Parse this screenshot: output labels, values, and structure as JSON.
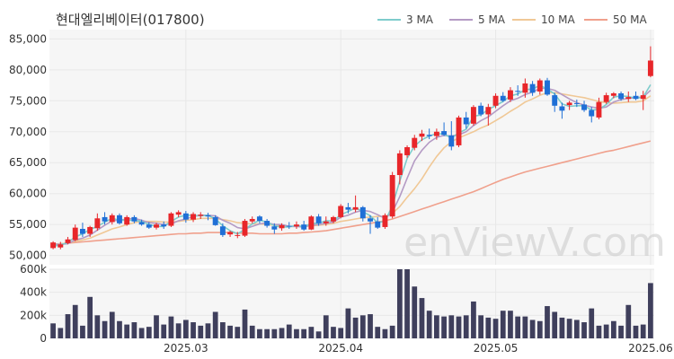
{
  "chart_data": {
    "type": "candlestick",
    "title": "현대엘리베이터(017800)",
    "watermark": "enViewV.com",
    "price_axis": {
      "ylim": [
        48500,
        86500
      ],
      "ticks": [
        50000,
        55000,
        60000,
        65000,
        70000,
        75000,
        80000,
        85000
      ],
      "tick_labels": [
        "50,000",
        "55,000",
        "60,000",
        "65,000",
        "70,000",
        "75,000",
        "80,000",
        "85,000"
      ]
    },
    "volume_axis": {
      "ylim": [
        0,
        600000
      ],
      "ticks": [
        0,
        200000,
        400000,
        600000
      ],
      "tick_labels": [
        "0",
        "200k",
        "400k",
        "600k"
      ]
    },
    "x_axis": {
      "tick_labels": [
        {
          "label": "2025.03",
          "index": 18
        },
        {
          "label": "2025.04",
          "index": 39
        },
        {
          "label": "2025.05",
          "index": 60
        },
        {
          "label": "2025.06",
          "index": 81
        }
      ],
      "count": 82
    },
    "legend": [
      {
        "name": "3 MA",
        "color": "#7ecccc"
      },
      {
        "name": "5 MA",
        "color": "#b49ac4"
      },
      {
        "name": "10 MA",
        "color": "#f0c896"
      },
      {
        "name": "50 MA",
        "color": "#f0a08c"
      }
    ],
    "colors": {
      "up": "#e8262a",
      "down": "#1f6fd6",
      "volume": "#3f3f5c",
      "grid": "#e8e8e8",
      "panel": "#f6f6f6"
    },
    "candles": [
      [
        51200,
        52300,
        51000,
        52100
      ],
      [
        51300,
        52200,
        51000,
        51800
      ],
      [
        52000,
        53000,
        51800,
        52600
      ],
      [
        52500,
        55000,
        52300,
        54500
      ],
      [
        54300,
        55300,
        53000,
        53500
      ],
      [
        53500,
        54800,
        53000,
        54600
      ],
      [
        54400,
        56800,
        54000,
        56000
      ],
      [
        56200,
        57000,
        55000,
        55500
      ],
      [
        55400,
        56800,
        55000,
        56500
      ],
      [
        56500,
        56800,
        55000,
        55200
      ],
      [
        55000,
        56500,
        54800,
        56200
      ],
      [
        56200,
        56500,
        55200,
        55500
      ],
      [
        55400,
        55800,
        54800,
        55000
      ],
      [
        55000,
        55400,
        54300,
        54500
      ],
      [
        54500,
        55300,
        54200,
        55000
      ],
      [
        55000,
        55500,
        54300,
        54700
      ],
      [
        54800,
        57000,
        54600,
        56800
      ],
      [
        56600,
        57300,
        56200,
        57000
      ],
      [
        56800,
        57200,
        55300,
        55800
      ],
      [
        55800,
        57000,
        55400,
        56700
      ],
      [
        56400,
        57000,
        55900,
        56600
      ],
      [
        56500,
        56900,
        55700,
        56300
      ],
      [
        56200,
        56500,
        54800,
        54900
      ],
      [
        54700,
        55200,
        53000,
        53300
      ],
      [
        53400,
        54000,
        53000,
        53800
      ],
      [
        53200,
        53800,
        52800,
        53300
      ],
      [
        53200,
        55900,
        53000,
        55600
      ],
      [
        55500,
        56300,
        55200,
        55900
      ],
      [
        56300,
        56500,
        55200,
        55600
      ],
      [
        55600,
        55900,
        54500,
        54800
      ],
      [
        54700,
        55200,
        53500,
        54200
      ],
      [
        54400,
        55200,
        54000,
        54900
      ],
      [
        54800,
        55400,
        54300,
        54700
      ],
      [
        54700,
        55500,
        54300,
        55000
      ],
      [
        55000,
        55600,
        54000,
        54200
      ],
      [
        54200,
        56500,
        54100,
        56300
      ],
      [
        56300,
        56700,
        54800,
        55200
      ],
      [
        55200,
        56300,
        54800,
        55500
      ],
      [
        55500,
        56400,
        55200,
        56200
      ],
      [
        56200,
        58300,
        56000,
        58000
      ],
      [
        57800,
        58500,
        56800,
        57400
      ],
      [
        57400,
        59700,
        57000,
        57800
      ],
      [
        57800,
        58000,
        55500,
        56000
      ],
      [
        56000,
        56500,
        53500,
        55500
      ],
      [
        55500,
        56200,
        54300,
        54500
      ],
      [
        54600,
        56800,
        54300,
        56500
      ],
      [
        56300,
        63500,
        56000,
        63000
      ],
      [
        63000,
        67000,
        61500,
        66500
      ],
      [
        66200,
        67800,
        65800,
        67500
      ],
      [
        67400,
        69500,
        67000,
        69000
      ],
      [
        69200,
        70300,
        68500,
        69700
      ],
      [
        69500,
        70500,
        68800,
        69300
      ],
      [
        69300,
        70500,
        68700,
        70000
      ],
      [
        70100,
        71500,
        69300,
        69500
      ],
      [
        69400,
        71700,
        67000,
        67600
      ],
      [
        67800,
        72600,
        67500,
        72300
      ],
      [
        72300,
        73200,
        70500,
        71200
      ],
      [
        71300,
        74300,
        71000,
        74000
      ],
      [
        74200,
        74700,
        72500,
        72800
      ],
      [
        72800,
        74500,
        71000,
        74000
      ],
      [
        74200,
        76200,
        73800,
        75800
      ],
      [
        75800,
        76400,
        74800,
        75000
      ],
      [
        75200,
        77200,
        74800,
        76700
      ],
      [
        76600,
        77500,
        75800,
        76500
      ],
      [
        76300,
        78600,
        75500,
        77800
      ],
      [
        77700,
        78200,
        75800,
        76300
      ],
      [
        76500,
        78600,
        76000,
        78300
      ],
      [
        78300,
        78700,
        75800,
        76000
      ],
      [
        75900,
        76300,
        73200,
        74200
      ],
      [
        74100,
        74700,
        72100,
        73400
      ],
      [
        74300,
        75000,
        73500,
        74700
      ],
      [
        74600,
        75200,
        74000,
        74500
      ],
      [
        74400,
        75000,
        73200,
        73500
      ],
      [
        73500,
        74000,
        71500,
        72500
      ],
      [
        72300,
        75500,
        72000,
        74800
      ],
      [
        74800,
        76300,
        74500,
        75900
      ],
      [
        75800,
        76400,
        75400,
        76200
      ],
      [
        76200,
        76500,
        75000,
        75300
      ],
      [
        75300,
        76500,
        74800,
        75600
      ],
      [
        75800,
        76500,
        75100,
        75300
      ],
      [
        75300,
        76600,
        73500,
        75900
      ],
      [
        79000,
        83800,
        78800,
        81500
      ]
    ],
    "volumes": [
      130000,
      90000,
      210000,
      290000,
      110000,
      360000,
      200000,
      150000,
      230000,
      150000,
      120000,
      140000,
      90000,
      100000,
      200000,
      120000,
      190000,
      130000,
      160000,
      140000,
      110000,
      130000,
      230000,
      140000,
      110000,
      100000,
      250000,
      110000,
      80000,
      80000,
      80000,
      90000,
      120000,
      80000,
      80000,
      100000,
      60000,
      200000,
      100000,
      90000,
      260000,
      180000,
      200000,
      210000,
      100000,
      80000,
      110000,
      700000,
      610000,
      450000,
      350000,
      240000,
      200000,
      190000,
      200000,
      190000,
      200000,
      320000,
      200000,
      180000,
      170000,
      240000,
      240000,
      190000,
      190000,
      160000,
      150000,
      280000,
      230000,
      180000,
      170000,
      160000,
      140000,
      260000,
      110000,
      120000,
      150000,
      110000,
      290000,
      110000,
      120000,
      480000
    ],
    "ma3": [
      51500,
      51700,
      52100,
      53000,
      53500,
      54200,
      54700,
      55400,
      56000,
      55700,
      55700,
      55700,
      55500,
      55000,
      54700,
      54700,
      55500,
      56200,
      56500,
      56500,
      56400,
      56500,
      55900,
      54800,
      54000,
      53500,
      54200,
      55100,
      55700,
      55400,
      54800,
      54600,
      54600,
      54900,
      54600,
      55200,
      55200,
      55600,
      55600,
      56600,
      57100,
      57700,
      57100,
      56400,
      55300,
      55500,
      58000,
      62000,
      65700,
      67700,
      68700,
      69300,
      69700,
      69600,
      69000,
      69800,
      70400,
      72500,
      72700,
      73600,
      74200,
      74900,
      75800,
      76100,
      76800,
      76900,
      77500,
      76900,
      76100,
      74500,
      74100,
      74200,
      74200,
      73500,
      73600,
      74400,
      75600,
      75800,
      75700,
      75400,
      75600,
      77600
    ],
    "ma5": [
      51800,
      51800,
      51900,
      52500,
      52800,
      53300,
      54100,
      54900,
      55600,
      55700,
      55900,
      56000,
      55700,
      55300,
      55200,
      55000,
      55100,
      55600,
      55900,
      56300,
      56500,
      56500,
      56400,
      55700,
      55200,
      54500,
      54300,
      54700,
      55100,
      55300,
      55000,
      55000,
      54700,
      54700,
      54600,
      54900,
      55000,
      55200,
      55400,
      56200,
      56500,
      57000,
      57300,
      57100,
      56600,
      56000,
      57000,
      59500,
      62500,
      65300,
      67000,
      68300,
      69100,
      69400,
      69300,
      69500,
      70000,
      71000,
      71800,
      72400,
      73300,
      74200,
      75000,
      75400,
      76000,
      76400,
      77000,
      77000,
      76700,
      76000,
      75300,
      74700,
      74300,
      74000,
      73800,
      74000,
      74800,
      75200,
      75400,
      75500,
      75600,
      76700
    ],
    "ma10": [
      51800,
      51900,
      52000,
      52300,
      52500,
      52800,
      53300,
      53800,
      54300,
      54600,
      55000,
      55300,
      55500,
      55500,
      55500,
      55400,
      55400,
      55500,
      55700,
      55800,
      56000,
      56000,
      56000,
      55800,
      55600,
      55300,
      55200,
      55100,
      55100,
      55000,
      54900,
      54800,
      54700,
      54700,
      54700,
      54800,
      54900,
      55000,
      55200,
      55500,
      55700,
      55900,
      56100,
      56200,
      56300,
      56300,
      56800,
      57900,
      59400,
      60800,
      62400,
      64300,
      66000,
      67400,
      68400,
      69000,
      69500,
      70000,
      70600,
      71100,
      71800,
      72500,
      73300,
      74000,
      74800,
      75300,
      75900,
      76300,
      76300,
      76100,
      75900,
      75700,
      75500,
      75200,
      74900,
      74700,
      74600,
      74700,
      74800,
      74800,
      75000,
      75800
    ],
    "ma50": [
      51800,
      51900,
      52000,
      52100,
      52200,
      52300,
      52400,
      52500,
      52600,
      52700,
      52800,
      52900,
      53000,
      53100,
      53200,
      53300,
      53400,
      53500,
      53500,
      53600,
      53600,
      53700,
      53700,
      53700,
      53700,
      53600,
      53600,
      53600,
      53500,
      53500,
      53500,
      53500,
      53600,
      53600,
      53700,
      53800,
      53900,
      54000,
      54200,
      54400,
      54600,
      54800,
      55000,
      55200,
      55400,
      55600,
      55900,
      56300,
      56700,
      57100,
      57500,
      57900,
      58300,
      58700,
      59100,
      59500,
      59900,
      60300,
      60800,
      61300,
      61800,
      62300,
      62700,
      63100,
      63500,
      63800,
      64100,
      64400,
      64700,
      65000,
      65300,
      65600,
      65900,
      66200,
      66500,
      66800,
      67000,
      67300,
      67600,
      67900,
      68200,
      68500
    ]
  }
}
